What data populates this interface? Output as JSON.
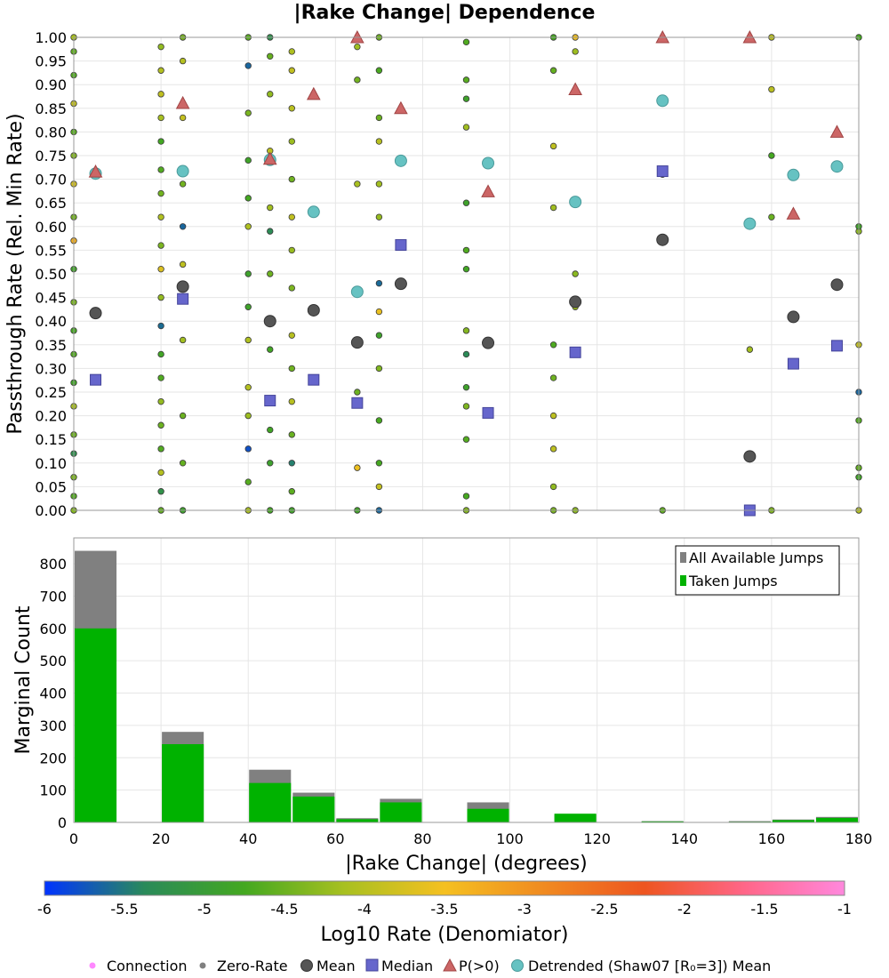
{
  "chart_data": [
    {
      "type": "scatter",
      "title": "|Rake Change| Dependence",
      "xlabel": "",
      "ylabel": "Passthrough Rate (Rel. Min Rate)",
      "xlim": [
        0,
        180
      ],
      "ylim": [
        0,
        1
      ],
      "yticks": [
        "0.00",
        "0.05",
        "0.10",
        "0.15",
        "0.20",
        "0.25",
        "0.30",
        "0.35",
        "0.40",
        "0.45",
        "0.50",
        "0.55",
        "0.60",
        "0.65",
        "0.70",
        "0.75",
        "0.80",
        "0.85",
        "0.90",
        "0.95",
        "1.00"
      ],
      "grid": true,
      "series": [
        {
          "name": "Mean",
          "color": "#555555",
          "x": [
            5,
            25,
            45,
            55,
            65,
            75,
            95,
            115,
            135,
            155,
            165,
            175
          ],
          "y": [
            0.417,
            0.473,
            0.4,
            0.423,
            0.355,
            0.479,
            0.354,
            0.441,
            0.572,
            0.114,
            0.409,
            0.477
          ]
        },
        {
          "name": "Median",
          "color": "#6666cc",
          "x": [
            5,
            25,
            45,
            55,
            65,
            75,
            95,
            115,
            135,
            155,
            165,
            175
          ],
          "y": [
            0.276,
            0.447,
            0.232,
            0.276,
            0.227,
            0.561,
            0.206,
            0.334,
            0.717,
            0.0,
            0.31,
            0.348
          ]
        },
        {
          "name": "P(>0)",
          "color": "#cc6666",
          "x": [
            5,
            25,
            45,
            55,
            65,
            75,
            95,
            115,
            135,
            155,
            165,
            175
          ],
          "y": [
            0.716,
            0.861,
            0.743,
            0.88,
            1.0,
            0.85,
            0.674,
            0.89,
            1.0,
            1.0,
            0.627,
            0.8
          ]
        },
        {
          "name": "Detrended (Shaw07 [R₀=3]) Mean",
          "color": "#66c2c2",
          "x": [
            5,
            25,
            45,
            55,
            65,
            75,
            95,
            115,
            135,
            155,
            165,
            175
          ],
          "y": [
            0.712,
            0.717,
            0.741,
            0.631,
            0.462,
            0.739,
            0.734,
            0.652,
            0.866,
            0.606,
            0.709,
            0.727
          ]
        }
      ],
      "connection_points": [
        [
          0,
          0.0
        ],
        [
          0,
          0.03
        ],
        [
          0,
          0.07
        ],
        [
          0,
          0.12
        ],
        [
          0,
          0.16
        ],
        [
          0,
          0.22
        ],
        [
          0,
          0.27
        ],
        [
          0,
          0.33
        ],
        [
          0,
          0.38
        ],
        [
          0,
          0.44
        ],
        [
          0,
          0.51
        ],
        [
          0,
          0.57
        ],
        [
          0,
          0.62
        ],
        [
          0,
          0.69
        ],
        [
          0,
          0.75
        ],
        [
          0,
          0.8
        ],
        [
          0,
          0.86
        ],
        [
          0,
          0.92
        ],
        [
          0,
          0.97
        ],
        [
          0,
          1.0
        ],
        [
          20,
          0.0
        ],
        [
          20,
          0.04
        ],
        [
          20,
          0.08
        ],
        [
          20,
          0.13
        ],
        [
          20,
          0.18
        ],
        [
          20,
          0.23
        ],
        [
          20,
          0.28
        ],
        [
          20,
          0.33
        ],
        [
          20,
          0.39
        ],
        [
          20,
          0.45
        ],
        [
          20,
          0.51
        ],
        [
          20,
          0.56
        ],
        [
          20,
          0.62
        ],
        [
          20,
          0.67
        ],
        [
          20,
          0.72
        ],
        [
          20,
          0.78
        ],
        [
          20,
          0.83
        ],
        [
          20,
          0.88
        ],
        [
          20,
          0.93
        ],
        [
          20,
          0.98
        ],
        [
          25,
          0.0
        ],
        [
          25,
          0.1
        ],
        [
          25,
          0.2
        ],
        [
          25,
          0.36
        ],
        [
          25,
          0.52
        ],
        [
          25,
          0.6
        ],
        [
          25,
          0.69
        ],
        [
          25,
          0.83
        ],
        [
          25,
          0.95
        ],
        [
          25,
          1.0
        ],
        [
          40,
          0.0
        ],
        [
          40,
          0.06
        ],
        [
          40,
          0.13
        ],
        [
          40,
          0.2
        ],
        [
          40,
          0.26
        ],
        [
          40,
          0.36
        ],
        [
          40,
          0.43
        ],
        [
          40,
          0.5
        ],
        [
          40,
          0.6
        ],
        [
          40,
          0.66
        ],
        [
          40,
          0.74
        ],
        [
          40,
          0.84
        ],
        [
          40,
          0.94
        ],
        [
          40,
          1.0
        ],
        [
          45,
          0.0
        ],
        [
          45,
          0.1
        ],
        [
          45,
          0.17
        ],
        [
          45,
          0.34
        ],
        [
          45,
          0.5
        ],
        [
          45,
          0.59
        ],
        [
          45,
          0.64
        ],
        [
          45,
          0.76
        ],
        [
          45,
          0.88
        ],
        [
          45,
          0.96
        ],
        [
          45,
          1.0
        ],
        [
          50,
          0.0
        ],
        [
          50,
          0.04
        ],
        [
          50,
          0.1
        ],
        [
          50,
          0.16
        ],
        [
          50,
          0.23
        ],
        [
          50,
          0.3
        ],
        [
          50,
          0.37
        ],
        [
          50,
          0.47
        ],
        [
          50,
          0.55
        ],
        [
          50,
          0.62
        ],
        [
          50,
          0.7
        ],
        [
          50,
          0.78
        ],
        [
          50,
          0.85
        ],
        [
          50,
          0.93
        ],
        [
          50,
          0.97
        ],
        [
          65,
          0.0
        ],
        [
          65,
          0.09
        ],
        [
          65,
          0.25
        ],
        [
          65,
          0.69
        ],
        [
          65,
          0.91
        ],
        [
          65,
          0.98
        ],
        [
          70,
          0.0
        ],
        [
          70,
          0.05
        ],
        [
          70,
          0.1
        ],
        [
          70,
          0.19
        ],
        [
          70,
          0.3
        ],
        [
          70,
          0.37
        ],
        [
          70,
          0.42
        ],
        [
          70,
          0.48
        ],
        [
          70,
          0.62
        ],
        [
          70,
          0.69
        ],
        [
          70,
          0.78
        ],
        [
          70,
          0.83
        ],
        [
          70,
          0.93
        ],
        [
          70,
          1.0
        ],
        [
          90,
          0.0
        ],
        [
          90,
          0.03
        ],
        [
          90,
          0.15
        ],
        [
          90,
          0.22
        ],
        [
          90,
          0.26
        ],
        [
          90,
          0.33
        ],
        [
          90,
          0.38
        ],
        [
          90,
          0.51
        ],
        [
          90,
          0.55
        ],
        [
          90,
          0.65
        ],
        [
          90,
          0.81
        ],
        [
          90,
          0.87
        ],
        [
          90,
          0.91
        ],
        [
          90,
          0.99
        ],
        [
          110,
          0.0
        ],
        [
          110,
          0.05
        ],
        [
          110,
          0.13
        ],
        [
          110,
          0.2
        ],
        [
          110,
          0.28
        ],
        [
          110,
          0.35
        ],
        [
          110,
          0.64
        ],
        [
          110,
          0.77
        ],
        [
          110,
          0.93
        ],
        [
          110,
          1.0
        ],
        [
          115,
          0.0
        ],
        [
          115,
          0.43
        ],
        [
          115,
          0.5
        ],
        [
          115,
          0.97
        ],
        [
          115,
          1.0
        ],
        [
          135,
          0.0
        ],
        [
          135,
          0.71
        ],
        [
          155,
          0.0
        ],
        [
          155,
          0.34
        ],
        [
          160,
          0.0
        ],
        [
          160,
          0.62
        ],
        [
          160,
          0.75
        ],
        [
          160,
          0.89
        ],
        [
          160,
          1.0
        ],
        [
          180,
          0.0
        ],
        [
          180,
          0.07
        ],
        [
          180,
          0.09
        ],
        [
          180,
          0.19
        ],
        [
          180,
          0.25
        ],
        [
          180,
          0.35
        ],
        [
          180,
          0.59
        ],
        [
          180,
          0.6
        ],
        [
          180,
          1.0
        ]
      ]
    },
    {
      "type": "bar",
      "title": "",
      "xlabel": "|Rake Change| (degrees)",
      "ylabel": "Marginal Count",
      "xlim": [
        0,
        180
      ],
      "ylim": [
        0,
        880
      ],
      "xticks": [
        "0",
        "20",
        "40",
        "60",
        "80",
        "100",
        "120",
        "140",
        "160",
        "180"
      ],
      "yticks": [
        "0",
        "100",
        "200",
        "300",
        "400",
        "500",
        "600",
        "700",
        "800"
      ],
      "bin_width": 10,
      "bin_centers": [
        5,
        15,
        25,
        35,
        45,
        55,
        65,
        75,
        85,
        95,
        105,
        115,
        125,
        135,
        145,
        155,
        165,
        175
      ],
      "series": [
        {
          "name": "All Available Jumps",
          "color": "#808080",
          "values": [
            840,
            0,
            280,
            0,
            163,
            92,
            13,
            73,
            0,
            62,
            0,
            25,
            0,
            4,
            0,
            4,
            9,
            17
          ]
        },
        {
          "name": "Taken Jumps",
          "color": "#00b200",
          "values": [
            600,
            0,
            242,
            0,
            122,
            80,
            10,
            62,
            0,
            42,
            0,
            27,
            0,
            3,
            0,
            2,
            7,
            14
          ]
        }
      ],
      "legend_position": "top-right",
      "grid": true
    },
    {
      "type": "colorbar",
      "label": "Log10 Rate (Denomiator)",
      "range": [
        -6,
        -1
      ],
      "ticks": [
        "-6",
        "-5.5",
        "-5",
        "-4.5",
        "-4",
        "-3.5",
        "-3",
        "-2.5",
        "-2",
        "-1.5",
        "-1"
      ],
      "colors": [
        "#0033ff",
        "#2a8a5a",
        "#44a820",
        "#a8c020",
        "#f5c020",
        "#f08a20",
        "#ee5520",
        "#ff6688",
        "#ff88dd"
      ]
    }
  ],
  "legend": {
    "items": [
      {
        "label": "Connection",
        "color": "#ff88ff"
      },
      {
        "label": "Zero-Rate",
        "color": "#808080"
      },
      {
        "label": "Mean",
        "color": "#555555"
      },
      {
        "label": "Median",
        "color": "#6666cc"
      },
      {
        "label": "P(>0)",
        "color": "#cc6666"
      },
      {
        "label": "Detrended (Shaw07 [R₀=3]) Mean",
        "color": "#66c2c2"
      }
    ]
  }
}
